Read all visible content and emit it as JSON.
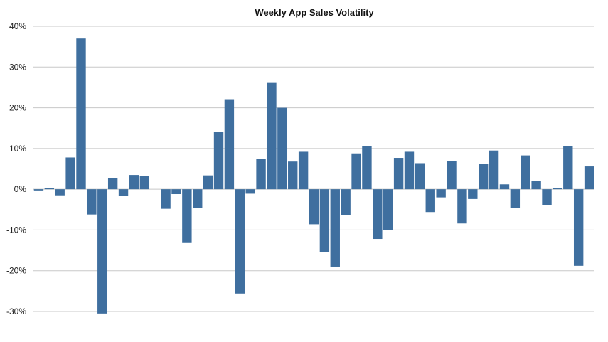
{
  "chart_data": {
    "type": "bar",
    "title": "Weekly App Sales Volatility",
    "xlabel": "",
    "ylabel": "",
    "ylim": [
      -30,
      40
    ],
    "yticks": [
      40,
      30,
      20,
      10,
      0,
      -10,
      -20,
      -30
    ],
    "ytick_labels": [
      "40%",
      "30%",
      "20%",
      "10%",
      "0%",
      "-10%",
      "-20%",
      "-30%"
    ],
    "grid": true,
    "legend": "none",
    "bar_color": "#3f6f9f",
    "values": [
      -0.3,
      0.3,
      -1.5,
      7.8,
      37.0,
      -6.2,
      -30.5,
      2.8,
      -1.6,
      3.5,
      3.3,
      0,
      -4.8,
      -1.2,
      -13.2,
      -4.6,
      3.4,
      14.0,
      22.1,
      -25.6,
      -1.1,
      7.5,
      26.1,
      20.0,
      6.8,
      9.2,
      -8.6,
      -15.5,
      -19.0,
      -6.3,
      8.8,
      10.5,
      -12.2,
      -10.1,
      7.7,
      9.2,
      6.4,
      -5.6,
      -2.0,
      6.9,
      -8.4,
      -2.4,
      6.3,
      9.5,
      1.2,
      -4.6,
      8.3,
      2.0,
      -3.9,
      0.3,
      10.6,
      -18.8,
      5.6
    ]
  }
}
